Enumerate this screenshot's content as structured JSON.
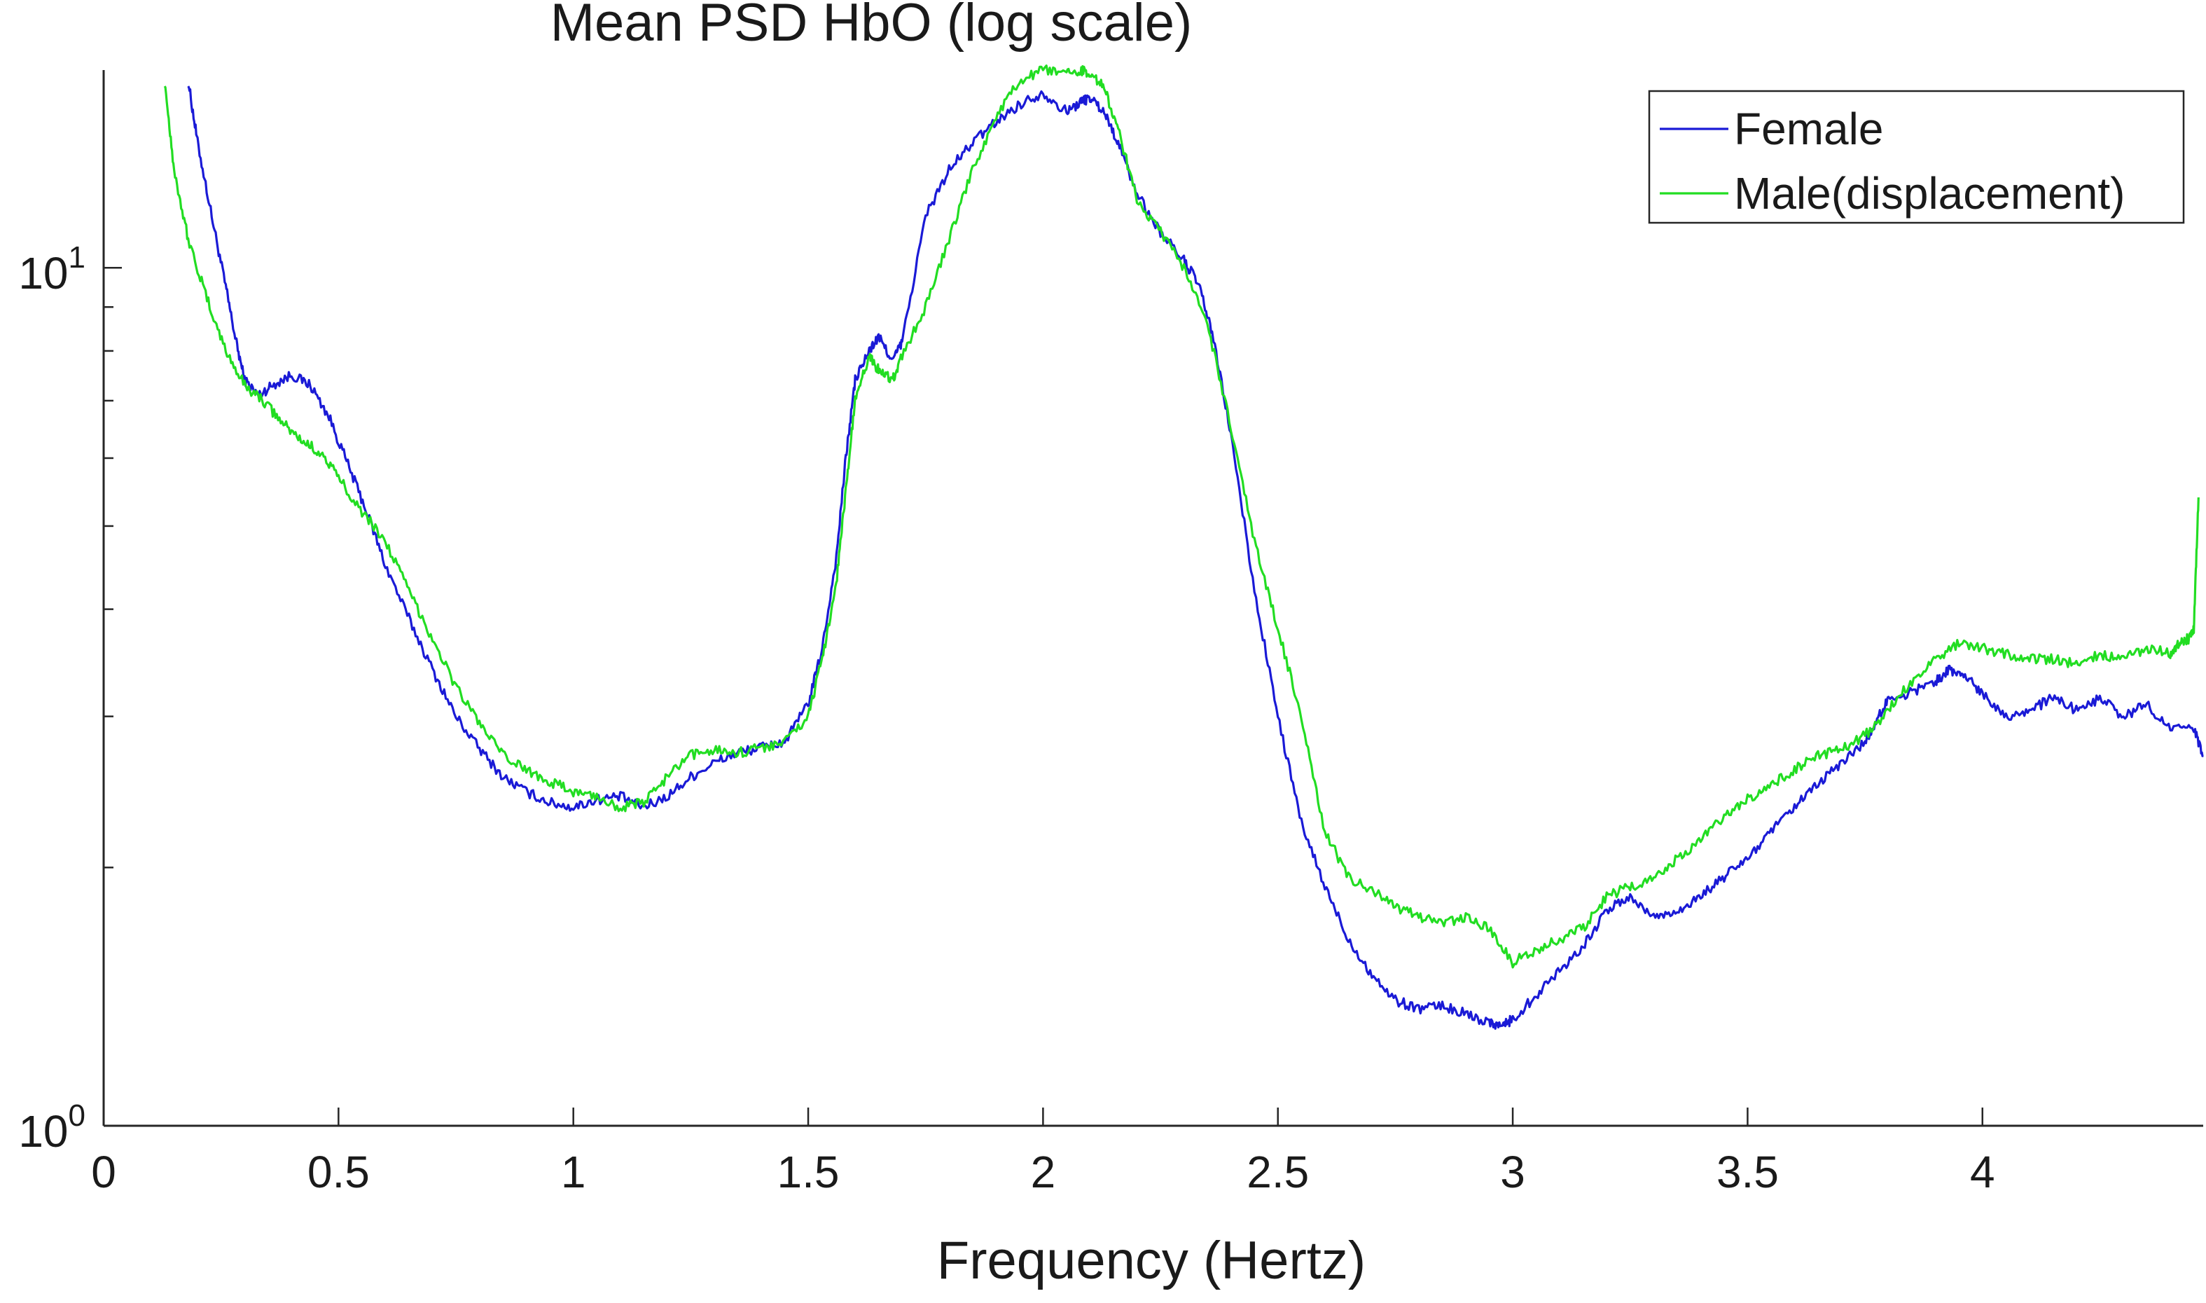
{
  "chart_data": {
    "type": "line",
    "title": "Mean PSD HbO (log scale)",
    "xlabel": "Frequency (Hertz)",
    "ylabel": "",
    "yscale": "log",
    "xlim": [
      0,
      4.47
    ],
    "ylim": [
      1,
      17
    ],
    "x_ticks": [
      0,
      0.5,
      1,
      1.5,
      2,
      2.5,
      3,
      3.5,
      4
    ],
    "x_tick_labels": [
      "0",
      "0.5",
      "1",
      "1.5",
      "2",
      "2.5",
      "3",
      "3.5",
      "4"
    ],
    "y_ticks": [
      {
        "value": 1,
        "base": "10",
        "exp": "0"
      },
      {
        "value": 10,
        "base": "10",
        "exp": "1"
      }
    ],
    "grid": false,
    "legend_position": "top-right",
    "series": [
      {
        "name": "Female",
        "color": "#1a1ad6",
        "x": [
          0.18,
          0.2,
          0.23,
          0.26,
          0.28,
          0.3,
          0.33,
          0.36,
          0.4,
          0.44,
          0.48,
          0.52,
          0.56,
          0.6,
          0.65,
          0.7,
          0.75,
          0.8,
          0.85,
          0.9,
          0.95,
          1.0,
          1.05,
          1.1,
          1.15,
          1.2,
          1.25,
          1.3,
          1.35,
          1.4,
          1.45,
          1.5,
          1.53,
          1.56,
          1.58,
          1.6,
          1.63,
          1.65,
          1.68,
          1.7,
          1.75,
          1.8,
          1.85,
          1.9,
          1.95,
          2.0,
          2.05,
          2.08,
          2.1,
          2.13,
          2.16,
          2.2,
          2.25,
          2.3,
          2.33,
          2.36,
          2.4,
          2.45,
          2.5,
          2.55,
          2.6,
          2.65,
          2.7,
          2.75,
          2.8,
          2.85,
          2.9,
          2.95,
          2.98,
          3.0,
          3.05,
          3.1,
          3.15,
          3.2,
          3.25,
          3.3,
          3.35,
          3.4,
          3.45,
          3.5,
          3.55,
          3.6,
          3.65,
          3.7,
          3.75,
          3.78,
          3.8,
          3.85,
          3.9,
          3.93,
          3.96,
          4.0,
          4.05,
          4.1,
          4.15,
          4.2,
          4.25,
          4.3,
          4.35,
          4.4,
          4.45,
          4.47
        ],
        "values": [
          16.5,
          14.0,
          11.5,
          9.5,
          8.3,
          7.4,
          7.1,
          7.3,
          7.5,
          7.3,
          6.7,
          5.9,
          5.2,
          4.5,
          3.9,
          3.4,
          3.0,
          2.75,
          2.55,
          2.45,
          2.38,
          2.35,
          2.4,
          2.42,
          2.35,
          2.42,
          2.55,
          2.65,
          2.72,
          2.76,
          2.8,
          3.1,
          3.6,
          4.6,
          6.0,
          7.4,
          8.0,
          8.3,
          7.8,
          8.2,
          11.5,
          13.0,
          14.0,
          14.8,
          15.5,
          16.0,
          15.2,
          15.6,
          15.8,
          15.2,
          14.0,
          12.2,
          11.0,
          10.2,
          9.6,
          8.4,
          6.4,
          4.2,
          3.0,
          2.25,
          1.9,
          1.65,
          1.5,
          1.4,
          1.37,
          1.38,
          1.35,
          1.32,
          1.31,
          1.33,
          1.42,
          1.52,
          1.62,
          1.78,
          1.85,
          1.75,
          1.78,
          1.85,
          1.95,
          2.05,
          2.2,
          2.35,
          2.5,
          2.65,
          2.8,
          3.0,
          3.15,
          3.2,
          3.3,
          3.4,
          3.35,
          3.2,
          3.0,
          3.05,
          3.15,
          3.05,
          3.15,
          3.0,
          3.1,
          2.9,
          2.9,
          2.7
        ]
      },
      {
        "name": "Male(displacement)",
        "color": "#22dd22",
        "x": [
          0.13,
          0.15,
          0.18,
          0.22,
          0.26,
          0.3,
          0.34,
          0.38,
          0.42,
          0.46,
          0.5,
          0.55,
          0.6,
          0.65,
          0.7,
          0.75,
          0.8,
          0.85,
          0.9,
          0.95,
          1.0,
          1.05,
          1.1,
          1.15,
          1.2,
          1.25,
          1.3,
          1.35,
          1.4,
          1.45,
          1.5,
          1.53,
          1.56,
          1.58,
          1.6,
          1.63,
          1.65,
          1.68,
          1.7,
          1.75,
          1.8,
          1.85,
          1.9,
          1.95,
          2.0,
          2.05,
          2.08,
          2.1,
          2.13,
          2.16,
          2.2,
          2.25,
          2.3,
          2.35,
          2.4,
          2.45,
          2.5,
          2.55,
          2.6,
          2.65,
          2.7,
          2.75,
          2.8,
          2.85,
          2.9,
          2.95,
          3.0,
          3.05,
          3.1,
          3.15,
          3.2,
          3.25,
          3.3,
          3.35,
          3.4,
          3.45,
          3.5,
          3.55,
          3.6,
          3.65,
          3.7,
          3.75,
          3.8,
          3.85,
          3.9,
          3.95,
          4.0,
          4.05,
          4.1,
          4.15,
          4.2,
          4.25,
          4.3,
          4.35,
          4.4,
          4.42,
          4.44,
          4.45,
          4.46
        ],
        "values": [
          16.5,
          13.0,
          10.8,
          9.2,
          8.0,
          7.3,
          7.0,
          6.6,
          6.3,
          6.1,
          5.7,
          5.2,
          4.8,
          4.2,
          3.7,
          3.25,
          2.95,
          2.7,
          2.6,
          2.52,
          2.45,
          2.42,
          2.35,
          2.38,
          2.55,
          2.7,
          2.75,
          2.72,
          2.76,
          2.8,
          3.0,
          3.5,
          4.3,
          5.5,
          7.0,
          7.9,
          7.6,
          7.4,
          7.9,
          9.0,
          10.8,
          13.0,
          15.0,
          16.5,
          17.0,
          16.8,
          17.0,
          16.9,
          16.2,
          14.5,
          12.0,
          11.0,
          10.0,
          8.6,
          6.5,
          4.8,
          3.8,
          3.0,
          2.2,
          1.95,
          1.88,
          1.8,
          1.75,
          1.72,
          1.75,
          1.7,
          1.55,
          1.6,
          1.65,
          1.7,
          1.85,
          1.9,
          1.95,
          2.05,
          2.15,
          2.3,
          2.4,
          2.5,
          2.6,
          2.7,
          2.75,
          2.85,
          3.05,
          3.3,
          3.5,
          3.65,
          3.6,
          3.55,
          3.5,
          3.5,
          3.45,
          3.55,
          3.5,
          3.6,
          3.55,
          3.65,
          3.7,
          3.8,
          5.4
        ]
      }
    ]
  }
}
